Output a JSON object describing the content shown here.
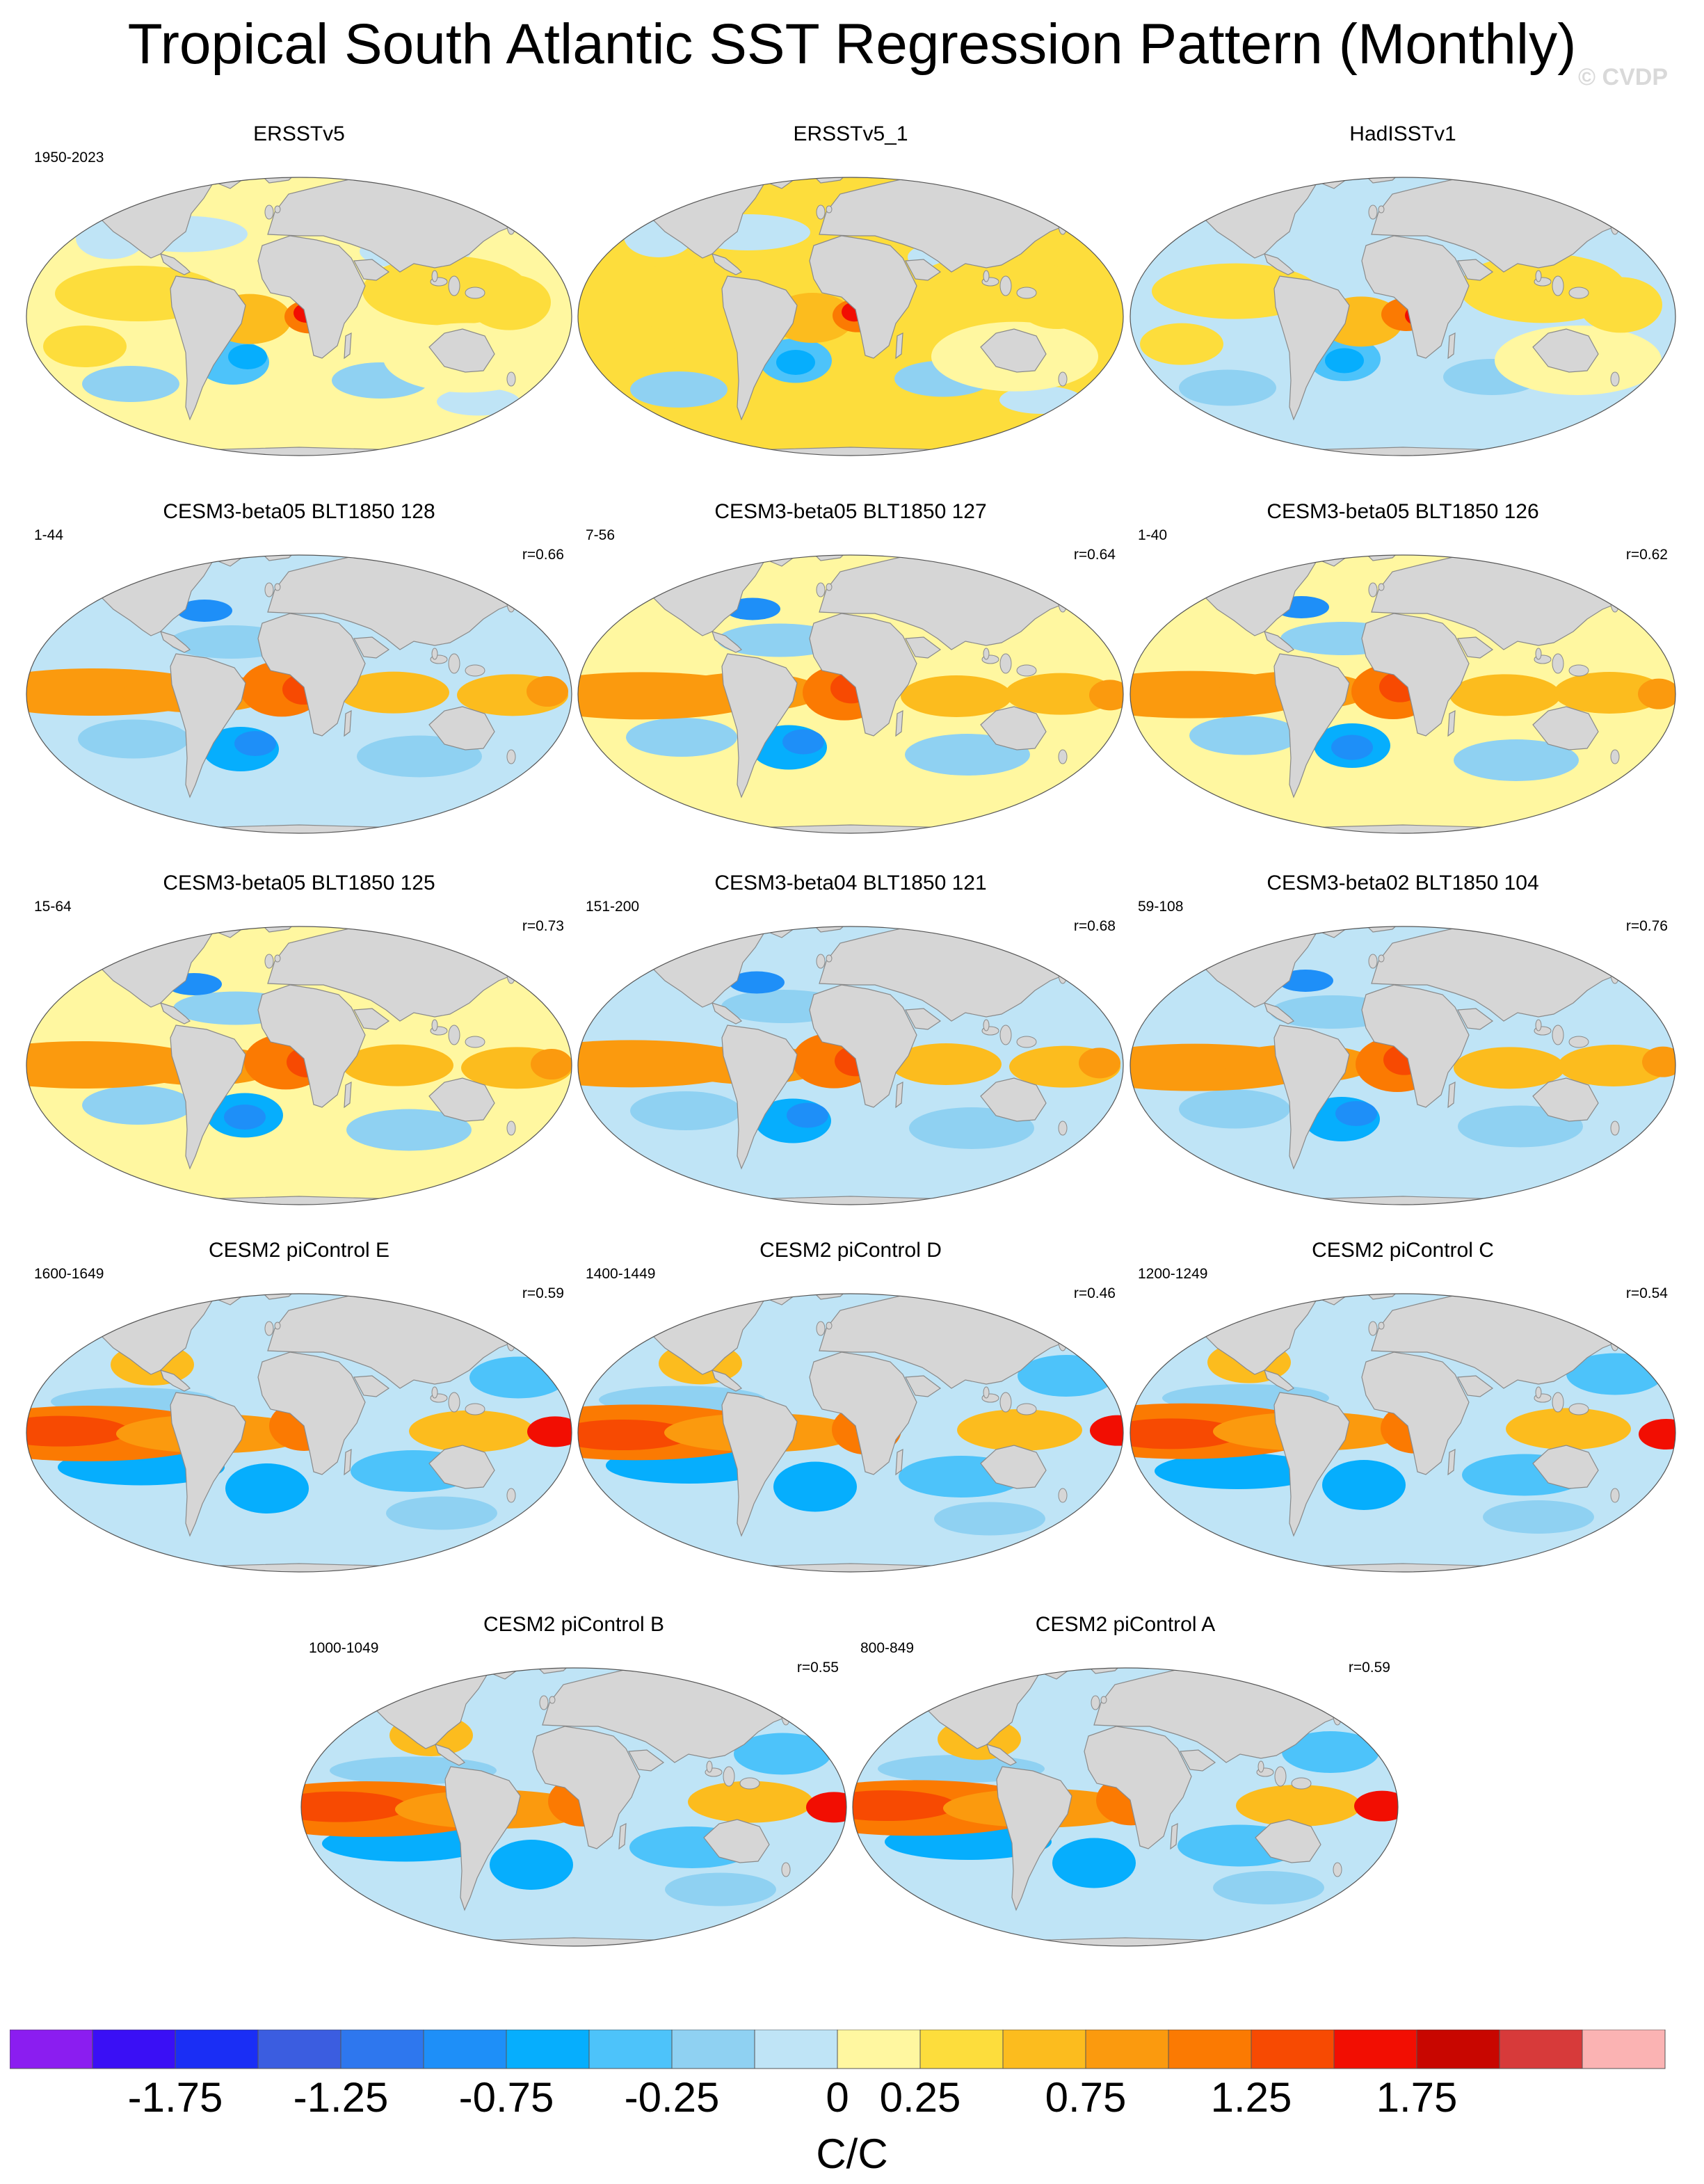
{
  "title": "Tropical South Atlantic SST Regression Pattern (Monthly)",
  "watermark": "© CVDP",
  "colorbar": {
    "units": "C/C",
    "colors": [
      "#8b1df0",
      "#3a0ff5",
      "#1a2ef5",
      "#3b5de0",
      "#2e77ee",
      "#1e8ff8",
      "#06aefd",
      "#4dc3fa",
      "#8fd1f2",
      "#bfe4f6",
      "#fff7a0",
      "#fddd3c",
      "#fcbc1e",
      "#fb9a0e",
      "#fb7a02",
      "#f74a02",
      "#f20e02",
      "#c80600",
      "#d73a3a",
      "#fbb3b3"
    ],
    "tick_labels": [
      "-1.75",
      "-1.25",
      "-0.75",
      "-0.25",
      "0",
      "0.25",
      "0.75",
      "1.25",
      "1.75"
    ]
  },
  "panels": [
    {
      "title": "ERSSTv5",
      "period": "1950-2023",
      "corr": ""
    },
    {
      "title": "ERSSTv5_1",
      "period": "",
      "corr": ""
    },
    {
      "title": "HadISSTv1",
      "period": "",
      "corr": ""
    },
    {
      "title": "CESM3-beta05 BLT1850 128",
      "period": "1-44",
      "corr": "r=0.66"
    },
    {
      "title": "CESM3-beta05 BLT1850 127",
      "period": "7-56",
      "corr": "r=0.64"
    },
    {
      "title": "CESM3-beta05 BLT1850 126",
      "period": "1-40",
      "corr": "r=0.62"
    },
    {
      "title": "CESM3-beta05 BLT1850 125",
      "period": "15-64",
      "corr": "r=0.73"
    },
    {
      "title": "CESM3-beta04 BLT1850 121",
      "period": "151-200",
      "corr": "r=0.68"
    },
    {
      "title": "CESM3-beta02 BLT1850 104",
      "period": "59-108",
      "corr": "r=0.76"
    },
    {
      "title": "CESM2 piControl E",
      "period": "1600-1649",
      "corr": "r=0.59"
    },
    {
      "title": "CESM2 piControl D",
      "period": "1400-1449",
      "corr": "r=0.46"
    },
    {
      "title": "CESM2 piControl C",
      "period": "1200-1249",
      "corr": "r=0.54"
    },
    {
      "title": "CESM2 piControl B",
      "period": "1000-1049",
      "corr": "r=0.55"
    },
    {
      "title": "CESM2 piControl A",
      "period": "800-849",
      "corr": "r=0.59"
    }
  ]
}
